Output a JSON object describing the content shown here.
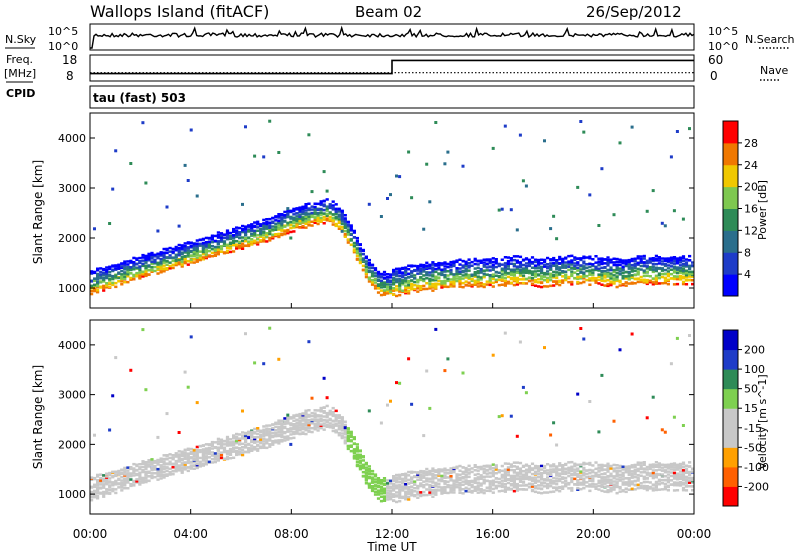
{
  "header": {
    "station": "Wallops Island (fitACF)",
    "beam": "Beam 02",
    "date": "26/Sep/2012"
  },
  "labels": {
    "nsky": "N.Sky",
    "nsearch": "N.Search",
    "freq": "Freq.",
    "mhz": "[MHz]",
    "nave": "Nave",
    "cpid": "CPID",
    "cpid_value": "tau (fast) 503"
  },
  "colors": {
    "power": [
      "#0000ff",
      "#1e3cc8",
      "#2a6e8c",
      "#2e8b57",
      "#7ec850",
      "#f0c800",
      "#f07800",
      "#ff0000"
    ],
    "velocity_scale": [
      "#ff0000",
      "#ff6000",
      "#ffa000",
      "#c8c8c8",
      "#c8c8c8",
      "#7ed050",
      "#2e8b57",
      "#1e3cc8",
      "#0000c8"
    ],
    "scatter_grey": "#c8c8c8"
  },
  "chart_data": [
    {
      "type": "line",
      "name": "noise",
      "left_ticks": [
        "10^5",
        "10^0"
      ],
      "right_ticks": [
        "10^5",
        "10^0"
      ],
      "series": [
        {
          "name": "N.Sky",
          "style": "solid"
        },
        {
          "name": "N.Search",
          "style": "dotted"
        }
      ]
    },
    {
      "type": "line",
      "name": "frequency",
      "left_ticks": [
        "18",
        "8"
      ],
      "right_ticks": [
        "60",
        "0"
      ],
      "ylim_left": [
        8,
        18
      ],
      "ylim_right": [
        0,
        60
      ],
      "series": [
        {
          "name": "Freq.",
          "x_hours": [
            0,
            12,
            12,
            24
          ],
          "values": [
            10.2,
            10.2,
            16.8,
            16.8
          ]
        },
        {
          "name": "Nave",
          "style": "dotted",
          "value": 16
        }
      ]
    },
    {
      "type": "heatmap",
      "name": "power",
      "xlabel": "",
      "ylabel": "Slant Range [km]",
      "ylim": [
        600,
        4500
      ],
      "yticks": [
        "4000",
        "3000",
        "2000",
        "1000"
      ],
      "colorbar_label": "Power [dB]",
      "colorbar_ticks": [
        "28",
        "24",
        "20",
        "16",
        "12",
        "8",
        "4"
      ],
      "ridge_hours": [
        0,
        1,
        2,
        3,
        4,
        5,
        6,
        7,
        8,
        9,
        9.5,
        10,
        10.5,
        11,
        11.5,
        12,
        13,
        14,
        15,
        16,
        17,
        18,
        19,
        20,
        21,
        22,
        23,
        24
      ],
      "ridge_range_km": [
        1100,
        1250,
        1400,
        1550,
        1700,
        1850,
        2000,
        2150,
        2350,
        2500,
        2550,
        2350,
        1900,
        1400,
        1100,
        1050,
        1150,
        1200,
        1250,
        1250,
        1300,
        1250,
        1300,
        1300,
        1250,
        1300,
        1300,
        1300
      ]
    },
    {
      "type": "heatmap",
      "name": "velocity",
      "xlabel": "Time UT",
      "ylabel": "Slant Range [km]",
      "ylim": [
        600,
        4500
      ],
      "yticks": [
        "4000",
        "3000",
        "2000",
        "1000"
      ],
      "x_ticks": [
        "00:00",
        "04:00",
        "08:00",
        "12:00",
        "16:00",
        "20:00",
        "00:00"
      ],
      "colorbar_label": "Velocity [m s^-1]",
      "colorbar_ticks": [
        "200",
        "100",
        "50",
        "15",
        "-15",
        "-50",
        "-100",
        "-200"
      ]
    }
  ]
}
